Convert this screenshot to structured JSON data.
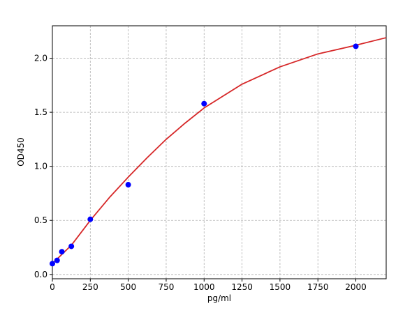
{
  "chart_data": {
    "type": "scatter",
    "xlabel": "pg/ml",
    "ylabel": "OD450",
    "xlim": [
      0,
      2200
    ],
    "ylim": [
      -0.04,
      2.3
    ],
    "xticks": [
      0,
      250,
      500,
      750,
      1000,
      1250,
      1500,
      1750,
      2000
    ],
    "yticks": [
      {
        "value": 0,
        "label": "0.0"
      },
      0.5,
      {
        "value": 1,
        "label": "1.0"
      },
      1.5,
      {
        "value": 2,
        "label": "2.0"
      }
    ],
    "grid": true,
    "series": [
      {
        "mode": "markers",
        "color": "#0000ff",
        "x": [
          0,
          31.25,
          62.5,
          125,
          250,
          500,
          1000,
          2000
        ],
        "values": [
          0.1,
          0.13,
          0.21,
          0.26,
          0.51,
          0.83,
          1.58,
          2.11
        ]
      },
      {
        "mode": "line",
        "color": "#d62728",
        "x": [
          0,
          125,
          250,
          375,
          500,
          625,
          750,
          875,
          1000,
          1250,
          1500,
          1750,
          2000,
          2200
        ],
        "values": [
          0.1,
          0.27,
          0.5,
          0.71,
          0.9,
          1.08,
          1.25,
          1.4,
          1.54,
          1.76,
          1.92,
          2.04,
          2.12,
          2.19
        ]
      }
    ]
  }
}
